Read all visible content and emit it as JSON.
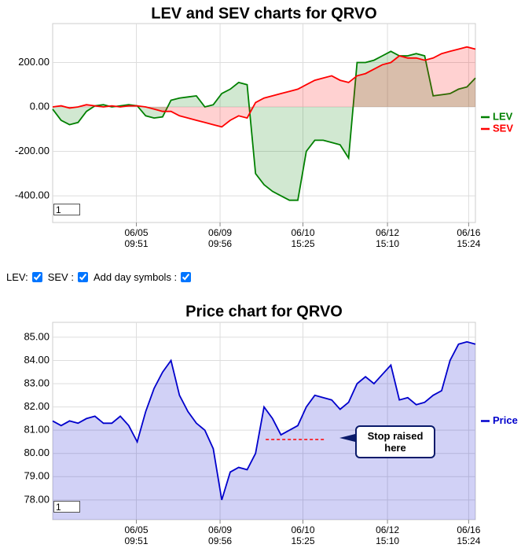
{
  "chart_data": [
    {
      "type": "line",
      "title": "LEV and SEV charts for QRVO",
      "ylim": [
        -520,
        375
      ],
      "yticks": [
        {
          "value": 200,
          "label": "200.00"
        },
        {
          "value": 0,
          "label": "0.00"
        },
        {
          "value": -200,
          "label": "-200.00"
        },
        {
          "value": -400,
          "label": "-400.00"
        }
      ],
      "xlim": [
        0,
        50
      ],
      "xticks": [
        {
          "value": 9.9,
          "label": "06/05\n09:51"
        },
        {
          "value": 19.8,
          "label": "06/09\n09:56"
        },
        {
          "value": 29.6,
          "label": "06/10\n15:25"
        },
        {
          "value": 39.6,
          "label": "06/12\n15:10"
        },
        {
          "value": 49.2,
          "label": "06/16\n15:24"
        }
      ],
      "grid": true,
      "area": true,
      "range_box": "1",
      "series": [
        {
          "name": "LEV",
          "color": "#008000",
          "values": [
            -10,
            -60,
            -80,
            -70,
            -20,
            5,
            10,
            0,
            5,
            10,
            5,
            -40,
            -50,
            -45,
            30,
            40,
            45,
            50,
            0,
            10,
            60,
            80,
            110,
            100,
            -300,
            -350,
            -380,
            -400,
            -420,
            -420,
            -200,
            -150,
            -150,
            -160,
            -170,
            -230,
            200,
            200,
            210,
            230,
            250,
            230,
            230,
            240,
            230,
            50,
            55,
            60,
            80,
            90,
            130
          ]
        },
        {
          "name": "SEV",
          "color": "#ff0000",
          "values": [
            0,
            5,
            -5,
            0,
            10,
            5,
            0,
            5,
            0,
            5,
            5,
            0,
            -10,
            -20,
            -20,
            -40,
            -50,
            -60,
            -70,
            -80,
            -90,
            -60,
            -40,
            -50,
            20,
            40,
            50,
            60,
            70,
            80,
            100,
            120,
            130,
            140,
            120,
            110,
            140,
            150,
            170,
            190,
            200,
            230,
            220,
            220,
            210,
            220,
            240,
            250,
            260,
            270,
            260
          ]
        }
      ]
    },
    {
      "type": "line",
      "title": "Price chart for QRVO",
      "ylim": [
        77.15,
        85.64
      ],
      "yticks": [
        {
          "value": 85,
          "label": "85.00"
        },
        {
          "value": 84,
          "label": "84.00"
        },
        {
          "value": 83,
          "label": "83.00"
        },
        {
          "value": 82,
          "label": "82.00"
        },
        {
          "value": 81,
          "label": "81.00"
        },
        {
          "value": 80,
          "label": "80.00"
        },
        {
          "value": 79,
          "label": "79.00"
        },
        {
          "value": 78,
          "label": "78.00"
        }
      ],
      "xlim": [
        0,
        50
      ],
      "xticks": [
        {
          "value": 9.9,
          "label": "06/05\n09:51"
        },
        {
          "value": 19.8,
          "label": "06/09\n09:56"
        },
        {
          "value": 29.6,
          "label": "06/10\n15:25"
        },
        {
          "value": 39.6,
          "label": "06/12\n15:10"
        },
        {
          "value": 49.2,
          "label": "06/16\n15:24"
        }
      ],
      "grid": true,
      "area": true,
      "range_box": "1",
      "series": [
        {
          "name": "Price",
          "color": "#0000cc",
          "values": [
            81.4,
            81.2,
            81.4,
            81.3,
            81.5,
            81.6,
            81.3,
            81.3,
            81.6,
            81.2,
            80.5,
            81.8,
            82.8,
            83.5,
            84.0,
            82.5,
            81.8,
            81.3,
            81.0,
            80.2,
            78.0,
            79.2,
            79.4,
            79.3,
            80.0,
            82.0,
            81.5,
            80.8,
            81.0,
            81.2,
            82.0,
            82.5,
            82.4,
            82.3,
            81.9,
            82.2,
            83.0,
            83.3,
            83.0,
            83.4,
            83.8,
            82.3,
            82.4,
            82.1,
            82.2,
            82.5,
            82.7,
            84.0,
            84.7,
            84.8,
            84.7
          ]
        }
      ],
      "annotation": {
        "text": "Stop raised\nhere",
        "x": [
          25.2,
          32.3
        ],
        "y": 80.6,
        "color": "#ff0000"
      }
    }
  ],
  "controls": [
    {
      "label": "LEV:",
      "checked": true
    },
    {
      "label": "SEV :",
      "checked": true
    },
    {
      "label": "Add day symbols :",
      "checked": true
    }
  ]
}
